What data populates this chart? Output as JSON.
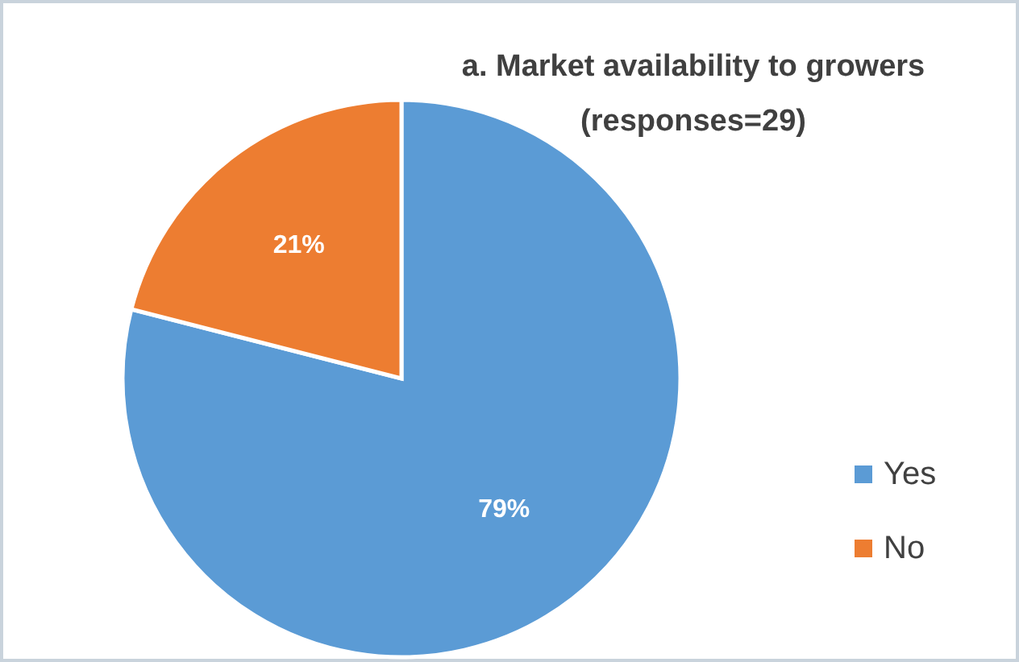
{
  "chart_data": {
    "type": "pie",
    "title": "a. Market availability to growers",
    "subtitle": "(responses=29)",
    "categories": [
      "Yes",
      "No"
    ],
    "values": [
      79,
      21
    ],
    "colors": [
      "#5b9bd5",
      "#ed7d31"
    ],
    "value_labels": [
      "79%",
      "21%"
    ],
    "legend": "right"
  }
}
